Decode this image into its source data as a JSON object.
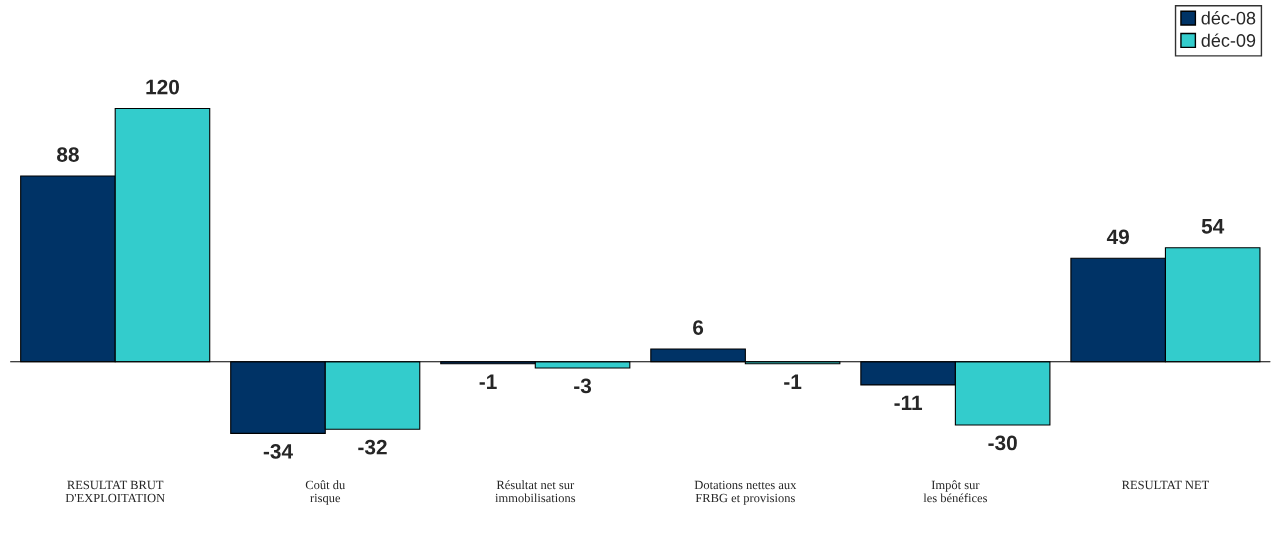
{
  "chart_data": {
    "type": "bar",
    "categories": [
      "RESULTAT BRUT D'EXPLOITATION",
      "Coût du risque",
      "Résultat net sur immobilisations",
      "Dotations nettes aux FRBG et provisions",
      "Impôt sur les bénéfices",
      "RESULTAT NET"
    ],
    "series": [
      {
        "name": "déc-08",
        "color": "#003366",
        "values": [
          88,
          -34,
          -1,
          6,
          -11,
          49
        ]
      },
      {
        "name": "déc-09",
        "color": "#33cccc",
        "values": [
          120,
          -32,
          -3,
          -1,
          -30,
          54
        ]
      }
    ],
    "data_labels": true,
    "legend": "top right",
    "grid": false
  }
}
